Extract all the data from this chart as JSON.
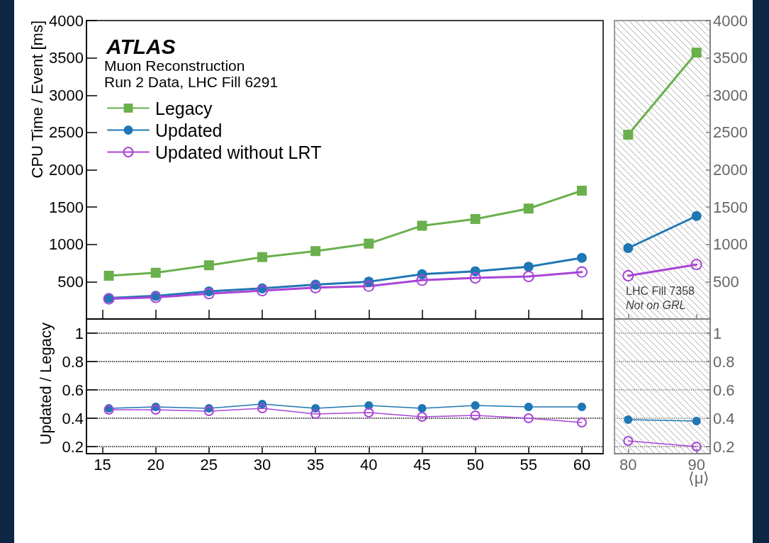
{
  "chart_data": [
    {
      "type": "line",
      "ylabel": "CPU Time / Event [ms]",
      "annotations": [
        "ATLAS",
        "Muon Reconstruction",
        "Run 2 Data, LHC Fill 6291"
      ],
      "x": [
        15.6,
        20,
        25,
        30,
        35,
        40,
        45,
        50,
        55,
        60
      ],
      "series": [
        {
          "name": "Legacy",
          "color": "#6ab04c",
          "marker": "square",
          "values": [
            580,
            620,
            720,
            830,
            910,
            1010,
            1250,
            1340,
            1480,
            1720
          ]
        },
        {
          "name": "Updated",
          "color": "#1f77b4",
          "marker": "circle",
          "values": [
            280,
            310,
            370,
            410,
            460,
            500,
            600,
            640,
            700,
            820
          ]
        },
        {
          "name": "Updated without LRT",
          "color": "#a845d6",
          "marker": "circle-open",
          "values": [
            270,
            290,
            340,
            380,
            420,
            440,
            520,
            550,
            570,
            630
          ]
        }
      ],
      "xlim": [
        13.5,
        62
      ],
      "xticks": [
        15,
        20,
        25,
        30,
        35,
        40,
        45,
        50,
        55,
        60
      ],
      "ylim": [
        0,
        4000
      ],
      "yticks": [
        500,
        1000,
        1500,
        2000,
        2500,
        3000,
        3500,
        4000
      ],
      "tick_labels": "y",
      "legend": "top left"
    },
    {
      "type": "line",
      "annotations": [
        "LHC Fill 7358",
        "Not on GRL"
      ],
      "x": [
        80,
        90
      ],
      "series": [
        {
          "color": "#6ab04c",
          "marker": "square",
          "values": [
            2470,
            3570
          ]
        },
        {
          "color": "#1f77b4",
          "marker": "circle",
          "values": [
            950,
            1380
          ]
        },
        {
          "color": "#a845d6",
          "marker": "circle-open",
          "values": [
            580,
            730
          ]
        }
      ],
      "xlim": [
        78,
        92
      ],
      "xticks": [
        80,
        90
      ],
      "ylim": [
        0,
        4000
      ],
      "yticks": [
        500,
        1000,
        1500,
        2000,
        2500,
        3000,
        3500,
        4000
      ],
      "tick_labels": "y",
      "bands": [
        {
          "axis": "x",
          "from": 78,
          "to": 92,
          "color": "#a0a0a0"
        }
      ]
    },
    {
      "type": "line",
      "ylabel": "Updated / Legacy",
      "x": [
        15.6,
        20,
        25,
        30,
        35,
        40,
        45,
        50,
        55,
        60
      ],
      "series": [
        {
          "color": "#1f77b4",
          "marker": "circle",
          "values": [
            0.47,
            0.48,
            0.47,
            0.5,
            0.47,
            0.49,
            0.47,
            0.49,
            0.48,
            0.48
          ]
        },
        {
          "color": "#a845d6",
          "marker": "circle-open",
          "values": [
            0.46,
            0.46,
            0.45,
            0.47,
            0.43,
            0.44,
            0.41,
            0.42,
            0.4,
            0.37
          ]
        }
      ],
      "xlim": [
        13.5,
        62
      ],
      "xticks": [
        15,
        20,
        25,
        30,
        35,
        40,
        45,
        50,
        55,
        60
      ],
      "ylim": [
        0.15,
        1.1
      ],
      "yticks": [
        0.2,
        0.4,
        0.6,
        0.8,
        1
      ],
      "grid": "y"
    },
    {
      "type": "line",
      "xlabel": "⟨μ⟩",
      "x": [
        80,
        90
      ],
      "series": [
        {
          "color": "#1f77b4",
          "marker": "circle",
          "values": [
            0.39,
            0.38
          ]
        },
        {
          "color": "#a845d6",
          "marker": "circle-open",
          "values": [
            0.24,
            0.2
          ]
        }
      ],
      "xlim": [
        78,
        92
      ],
      "xticks": [
        80,
        90
      ],
      "ylim": [
        0.15,
        1.1
      ],
      "yticks": [
        0.2,
        0.4,
        0.6,
        0.8,
        1
      ],
      "grid": "y",
      "bands": [
        {
          "axis": "x",
          "from": 78,
          "to": 92,
          "color": "#a0a0a0"
        }
      ]
    }
  ]
}
